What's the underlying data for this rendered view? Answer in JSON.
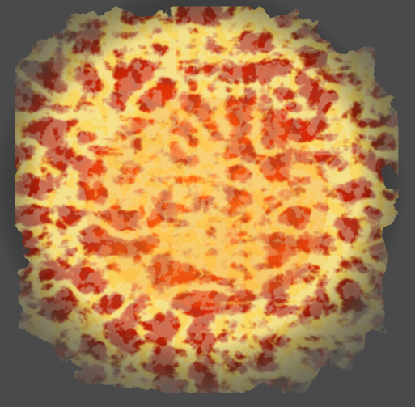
{
  "image": {
    "description_label": "",
    "background_color": "#4a4a4a",
    "palette": {
      "deep_red": "#8a1205",
      "red": "#d42a0a",
      "orange": "#f05a10",
      "amber": "#ff8a1a",
      "yellow": "#ffd23a",
      "pale_green_highlight": "#d9e7a6",
      "dark_vignette": "#474747"
    },
    "icon": "lava-texture-icon"
  }
}
